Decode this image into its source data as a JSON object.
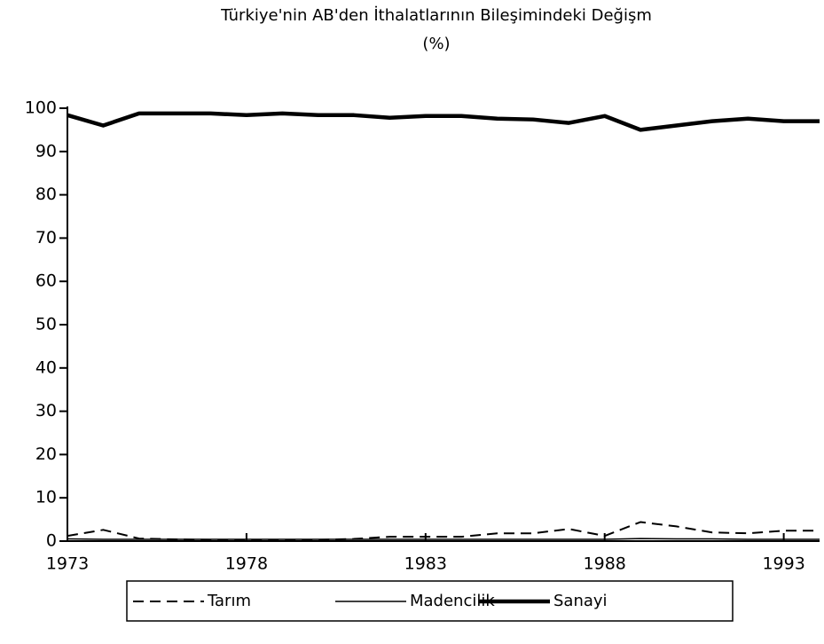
{
  "chart_data": {
    "type": "line",
    "title": "Türkiye'nin AB'den İthalatlarının Bileşimindeki Değişm",
    "subtitle": "(%)",
    "x": [
      1973,
      1974,
      1975,
      1976,
      1977,
      1978,
      1979,
      1980,
      1981,
      1982,
      1983,
      1984,
      1985,
      1986,
      1987,
      1988,
      1989,
      1990,
      1991,
      1992,
      1993,
      1994
    ],
    "series": [
      {
        "name": "Tarım",
        "color": "#000000",
        "style": "dashed",
        "values": [
          1.2,
          2.6,
          0.6,
          0.4,
          0.3,
          0.3,
          0.3,
          0.3,
          0.5,
          1,
          1,
          1,
          1.8,
          1.8,
          2.8,
          1.2,
          4.4,
          3.4,
          2,
          1.8,
          2.4,
          2.4
        ]
      },
      {
        "name": "Madencilik",
        "color": "#000000",
        "style": "thin",
        "values": [
          0.5,
          0.4,
          0.4,
          0.4,
          0.4,
          0.4,
          0.4,
          0.4,
          0.4,
          0.4,
          0.4,
          0.4,
          0.4,
          0.4,
          0.4,
          0.4,
          0.6,
          0.5,
          0.5,
          0.4,
          0.4,
          0.4
        ]
      },
      {
        "name": "Sanayi",
        "color": "#000000",
        "style": "thick",
        "values": [
          98.4,
          96,
          98.8,
          98.8,
          98.8,
          98.4,
          98.8,
          98.4,
          98.4,
          97.8,
          98.2,
          98.2,
          97.6,
          97.4,
          96.6,
          98.2,
          95,
          96,
          97,
          97.6,
          97,
          97
        ]
      }
    ],
    "xlim": [
      1973,
      1994
    ],
    "xticks": [
      1973,
      1978,
      1983,
      1988,
      1993
    ],
    "ylim": [
      0,
      100
    ],
    "yticks": [
      0,
      10,
      20,
      30,
      40,
      50,
      60,
      70,
      80,
      90,
      100
    ],
    "grid": false,
    "legend": "bottom"
  }
}
